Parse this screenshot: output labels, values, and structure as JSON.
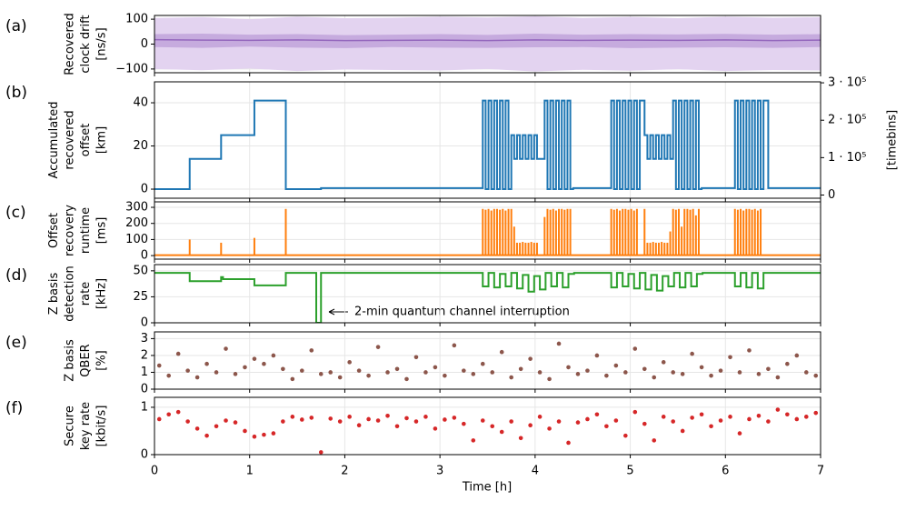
{
  "chart_data": [
    {
      "type": "band",
      "panel_label": "(a)",
      "ylabel": [
        "Recovered",
        "clock drift",
        "[ns/s]"
      ],
      "x": [
        0,
        0.5,
        1,
        1.5,
        2,
        2.5,
        3,
        3.5,
        4,
        4.5,
        5,
        5.5,
        6,
        6.5,
        7
      ],
      "series": [
        {
          "color": "#e3d3f0",
          "upper": [
            105,
            108,
            100,
            110,
            104,
            106,
            110,
            107,
            112,
            105,
            109,
            104,
            110,
            106,
            108
          ],
          "lower": [
            -100,
            -105,
            -98,
            -108,
            -102,
            -104,
            -106,
            -100,
            -110,
            -103,
            -107,
            -101,
            -108,
            -104,
            -106
          ]
        },
        {
          "color": "#c6abde",
          "upper": [
            40,
            42,
            38,
            40,
            36,
            38,
            40,
            37,
            42,
            38,
            40,
            39,
            41,
            38,
            40
          ],
          "lower": [
            -12,
            -15,
            -10,
            -14,
            -16,
            -12,
            -14,
            -15,
            -13,
            -12,
            -16,
            -14,
            -13,
            -15,
            -12
          ]
        },
        {
          "color": "#9467bd",
          "values": [
            18,
            16,
            15,
            17,
            14,
            15,
            16,
            14,
            17,
            15,
            16,
            15,
            17,
            14,
            16
          ]
        }
      ],
      "ylim": [
        -115,
        115
      ],
      "yticks": [
        {
          "value": -100,
          "label": "−100"
        },
        0,
        100
      ],
      "grid": true
    },
    {
      "type": "step",
      "panel_label": "(b)",
      "ylabel": [
        "Accumulated",
        "recovered",
        "offset",
        "[km]"
      ],
      "color": "#1f77b4",
      "x": [
        0,
        0.37,
        0.7,
        1.05,
        1.38,
        1.75,
        3.45,
        3.48,
        3.51,
        3.54,
        3.57,
        3.6,
        3.63,
        3.66,
        3.69,
        3.72,
        3.75,
        3.78,
        3.81,
        3.84,
        3.87,
        3.9,
        3.93,
        3.96,
        3.99,
        4.02,
        4.1,
        4.13,
        4.16,
        4.19,
        4.22,
        4.25,
        4.28,
        4.31,
        4.34,
        4.37,
        4.4,
        4.8,
        4.83,
        4.86,
        4.89,
        4.92,
        4.95,
        4.98,
        5.01,
        5.04,
        5.07,
        5.1,
        5.15,
        5.18,
        5.21,
        5.24,
        5.27,
        5.3,
        5.33,
        5.36,
        5.39,
        5.42,
        5.45,
        5.48,
        5.51,
        5.54,
        5.57,
        5.6,
        5.63,
        5.66,
        5.69,
        5.72,
        5.75,
        6.1,
        6.13,
        6.16,
        6.19,
        6.22,
        6.25,
        6.28,
        6.31,
        6.34,
        6.37,
        6.4,
        6.45
      ],
      "values": [
        0,
        14,
        25,
        41,
        0,
        0.5,
        41,
        0,
        41,
        0,
        41,
        0,
        41,
        0,
        41,
        0,
        25,
        14,
        25,
        14,
        25,
        14,
        25,
        14,
        25,
        14,
        41,
        0,
        41,
        0,
        41,
        0,
        41,
        0,
        41,
        0,
        0.5,
        41,
        0,
        41,
        0,
        41,
        0,
        41,
        0,
        41,
        0,
        41,
        25,
        14,
        25,
        14,
        25,
        14,
        25,
        14,
        25,
        14,
        41,
        0,
        41,
        0,
        41,
        0,
        41,
        0,
        41,
        0,
        0.5,
        41,
        0,
        41,
        0,
        41,
        0,
        41,
        0,
        41,
        0,
        41,
        0.5
      ],
      "ylim": [
        -4.2,
        49.7
      ],
      "yticks": [
        0,
        20,
        40
      ],
      "y2label": "[timebins]",
      "y2lim": [
        -8500,
        302600
      ],
      "y2ticks": [
        0,
        {
          "value": 100000,
          "label": "1 · 10⁵"
        },
        {
          "value": 200000,
          "label": "2 · 10⁵"
        },
        {
          "value": 300000,
          "label": "3 · 10⁵"
        }
      ],
      "grid": true
    },
    {
      "type": "stem",
      "panel_label": "(c)",
      "ylabel": [
        "Offset",
        "recovery",
        "runtime",
        "[ms]"
      ],
      "color": "#ff7f0e",
      "baseline": 3,
      "x": [
        0.37,
        0.7,
        1.05,
        1.38,
        3.45,
        3.48,
        3.51,
        3.54,
        3.57,
        3.6,
        3.63,
        3.66,
        3.69,
        3.72,
        3.75,
        3.78,
        3.81,
        3.84,
        3.87,
        3.9,
        3.93,
        3.96,
        3.99,
        4.02,
        4.1,
        4.13,
        4.16,
        4.19,
        4.22,
        4.25,
        4.28,
        4.31,
        4.34,
        4.37,
        4.8,
        4.83,
        4.86,
        4.89,
        4.92,
        4.95,
        4.98,
        5.01,
        5.04,
        5.07,
        5.15,
        5.18,
        5.21,
        5.24,
        5.27,
        5.3,
        5.33,
        5.36,
        5.39,
        5.42,
        5.45,
        5.48,
        5.51,
        5.54,
        5.57,
        5.6,
        5.63,
        5.66,
        5.69,
        5.72,
        6.1,
        6.13,
        6.16,
        6.19,
        6.22,
        6.25,
        6.28,
        6.31,
        6.34,
        6.37
      ],
      "values": [
        100,
        80,
        110,
        290,
        290,
        285,
        290,
        280,
        290,
        290,
        285,
        290,
        280,
        290,
        290,
        180,
        80,
        80,
        85,
        80,
        80,
        85,
        80,
        80,
        240,
        290,
        285,
        290,
        280,
        290,
        290,
        285,
        290,
        290,
        290,
        285,
        290,
        280,
        290,
        290,
        285,
        290,
        280,
        290,
        290,
        80,
        80,
        85,
        80,
        80,
        85,
        80,
        80,
        150,
        290,
        285,
        290,
        180,
        290,
        290,
        285,
        290,
        250,
        290,
        290,
        285,
        290,
        280,
        290,
        290,
        285,
        290,
        280,
        290
      ],
      "ylim": [
        -22,
        334
      ],
      "yticks": [
        0,
        100,
        200,
        300
      ],
      "grid": true
    },
    {
      "type": "step",
      "panel_label": "(d)",
      "ylabel": [
        "Z basis",
        "detection",
        "rate",
        "[kHz]"
      ],
      "color": "#2ca02c",
      "x": [
        0,
        0.37,
        0.7,
        0.72,
        1.05,
        1.38,
        1.7,
        1.75,
        3.45,
        3.51,
        3.57,
        3.63,
        3.69,
        3.75,
        3.81,
        3.87,
        3.93,
        3.99,
        4.05,
        4.11,
        4.17,
        4.23,
        4.29,
        4.35,
        4.41,
        4.8,
        4.86,
        4.92,
        4.98,
        5.04,
        5.1,
        5.16,
        5.22,
        5.28,
        5.34,
        5.4,
        5.46,
        5.52,
        5.58,
        5.64,
        5.7,
        5.76,
        6.1,
        6.16,
        6.22,
        6.28,
        6.34,
        6.4,
        6.46
      ],
      "values": [
        48,
        40,
        44,
        42,
        36,
        48,
        0,
        48,
        35,
        48,
        34,
        47,
        35,
        48,
        33,
        46,
        30,
        45,
        32,
        48,
        35,
        48,
        34,
        47,
        48,
        34,
        48,
        35,
        47,
        33,
        48,
        32,
        46,
        31,
        45,
        35,
        48,
        34,
        48,
        35,
        47,
        48,
        35,
        48,
        34,
        48,
        33,
        48,
        48
      ],
      "ylim": [
        0,
        56
      ],
      "yticks": [
        0,
        25,
        50
      ],
      "grid": true,
      "annotation": "2-min quantum channel interruption"
    },
    {
      "type": "scatter",
      "panel_label": "(e)",
      "ylabel": [
        "Z basis",
        "QBER",
        "[%]"
      ],
      "color": "#8c564b",
      "x": [
        0.05,
        0.15,
        0.25,
        0.35,
        0.45,
        0.55,
        0.65,
        0.75,
        0.85,
        0.95,
        1.05,
        1.15,
        1.25,
        1.35,
        1.45,
        1.55,
        1.65,
        1.75,
        1.85,
        1.95,
        2.05,
        2.15,
        2.25,
        2.35,
        2.45,
        2.55,
        2.65,
        2.75,
        2.85,
        2.95,
        3.05,
        3.15,
        3.25,
        3.35,
        3.45,
        3.55,
        3.65,
        3.75,
        3.85,
        3.95,
        4.05,
        4.15,
        4.25,
        4.35,
        4.45,
        4.55,
        4.65,
        4.75,
        4.85,
        4.95,
        5.05,
        5.15,
        5.25,
        5.35,
        5.45,
        5.55,
        5.65,
        5.75,
        5.85,
        5.95,
        6.05,
        6.15,
        6.25,
        6.35,
        6.45,
        6.55,
        6.65,
        6.75,
        6.85,
        6.95
      ],
      "values": [
        1.4,
        0.8,
        2.1,
        1.1,
        0.7,
        1.5,
        1.0,
        2.4,
        0.9,
        1.3,
        1.8,
        1.5,
        2.0,
        1.2,
        0.6,
        1.1,
        2.3,
        0.9,
        1.0,
        0.7,
        1.6,
        1.1,
        0.8,
        2.5,
        1.0,
        1.2,
        0.6,
        1.9,
        1.0,
        1.3,
        0.8,
        2.6,
        1.1,
        0.9,
        1.5,
        1.0,
        2.2,
        0.7,
        1.2,
        1.8,
        1.0,
        0.6,
        2.7,
        1.3,
        0.9,
        1.1,
        2.0,
        0.8,
        1.4,
        1.0,
        2.4,
        1.2,
        0.7,
        1.6,
        1.0,
        0.9,
        2.1,
        1.3,
        0.8,
        1.1,
        1.9,
        1.0,
        2.3,
        0.9,
        1.2,
        0.7,
        1.5,
        2.0,
        1.0,
        0.8
      ],
      "ylim": [
        0,
        3.4
      ],
      "yticks": [
        0,
        1,
        2,
        3
      ],
      "grid": true
    },
    {
      "type": "scatter",
      "panel_label": "(f)",
      "ylabel": [
        "Secure",
        "key rate",
        "[kbit/s]"
      ],
      "color": "#d62728",
      "x": [
        0.05,
        0.15,
        0.25,
        0.35,
        0.45,
        0.55,
        0.65,
        0.75,
        0.85,
        0.95,
        1.05,
        1.15,
        1.25,
        1.35,
        1.45,
        1.55,
        1.65,
        1.75,
        1.85,
        1.95,
        2.05,
        2.15,
        2.25,
        2.35,
        2.45,
        2.55,
        2.65,
        2.75,
        2.85,
        2.95,
        3.05,
        3.15,
        3.25,
        3.35,
        3.45,
        3.55,
        3.65,
        3.75,
        3.85,
        3.95,
        4.05,
        4.15,
        4.25,
        4.35,
        4.45,
        4.55,
        4.65,
        4.75,
        4.85,
        4.95,
        5.05,
        5.15,
        5.25,
        5.35,
        5.45,
        5.55,
        5.65,
        5.75,
        5.85,
        5.95,
        6.05,
        6.15,
        6.25,
        6.35,
        6.45,
        6.55,
        6.65,
        6.75,
        6.85,
        6.95
      ],
      "values": [
        0.75,
        0.85,
        0.9,
        0.7,
        0.55,
        0.4,
        0.6,
        0.72,
        0.68,
        0.5,
        0.38,
        0.42,
        0.45,
        0.7,
        0.8,
        0.74,
        0.78,
        0.05,
        0.76,
        0.7,
        0.8,
        0.62,
        0.75,
        0.72,
        0.82,
        0.6,
        0.77,
        0.7,
        0.8,
        0.55,
        0.74,
        0.78,
        0.65,
        0.3,
        0.72,
        0.6,
        0.48,
        0.7,
        0.35,
        0.62,
        0.8,
        0.55,
        0.7,
        0.25,
        0.68,
        0.75,
        0.85,
        0.6,
        0.72,
        0.4,
        0.9,
        0.65,
        0.3,
        0.8,
        0.7,
        0.5,
        0.78,
        0.85,
        0.6,
        0.72,
        0.8,
        0.45,
        0.75,
        0.82,
        0.7,
        0.95,
        0.85,
        0.75,
        0.8,
        0.88
      ],
      "ylim": [
        0,
        1.21
      ],
      "yticks": [
        0,
        1
      ],
      "grid": true,
      "xlabel": "Time [h]",
      "xlim": [
        0,
        7
      ],
      "xticks": [
        0,
        1,
        2,
        3,
        4,
        5,
        6,
        7
      ]
    }
  ]
}
